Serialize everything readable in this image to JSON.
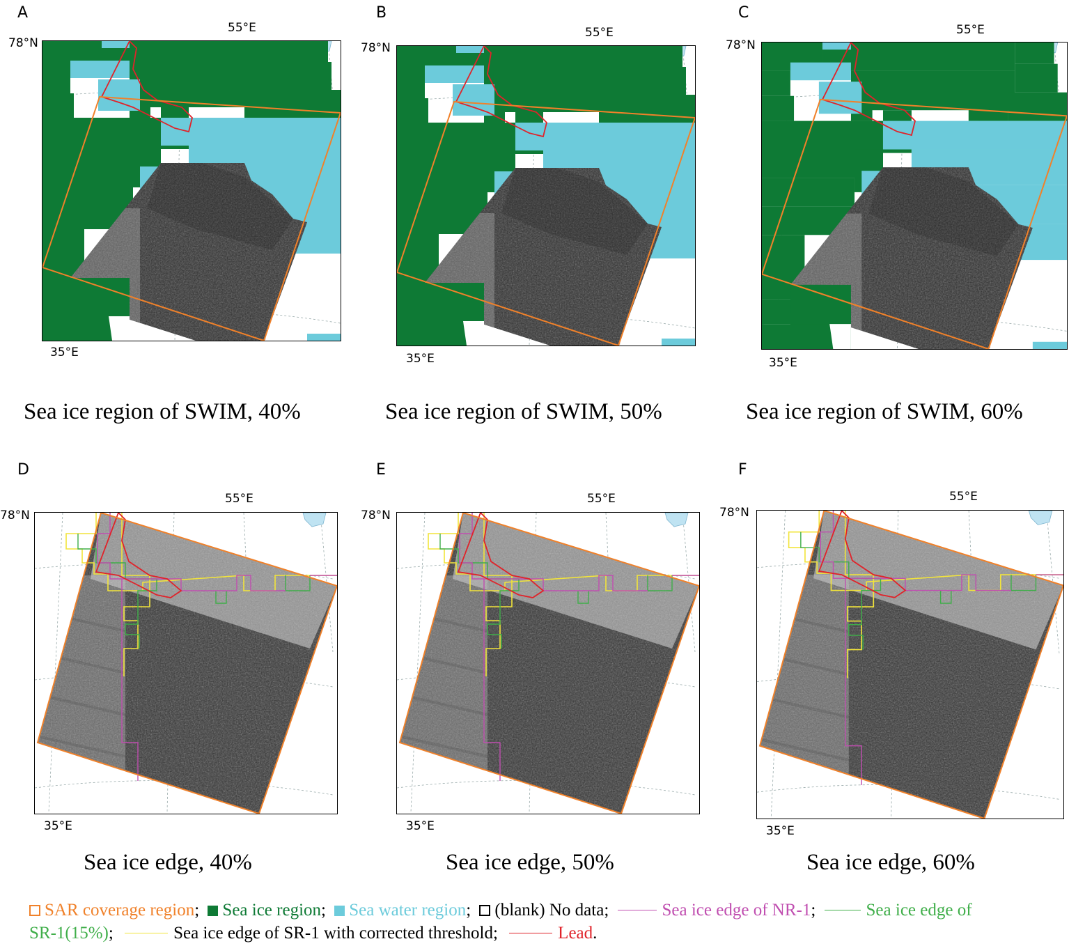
{
  "panels": [
    {
      "letter": "A",
      "lat_label": "78°N",
      "lon_top": "55°E",
      "lon_bottom": "35°E",
      "caption": "Sea ice region of SWIM, 40%"
    },
    {
      "letter": "B",
      "lat_label": "78°N",
      "lon_top": "55°E",
      "lon_bottom": "35°E",
      "caption": "Sea ice region of SWIM, 50%"
    },
    {
      "letter": "C",
      "lat_label": "78°N",
      "lon_top": "55°E",
      "lon_bottom": "35°E",
      "caption": "Sea ice region of SWIM, 60%"
    },
    {
      "letter": "D",
      "lat_label": "78°N",
      "lon_top": "55°E",
      "lon_bottom": "35°E",
      "caption": "Sea ice edge, 40%"
    },
    {
      "letter": "E",
      "lat_label": "78°N",
      "lon_top": "55°E",
      "lon_bottom": "35°E",
      "caption": "Sea ice edge, 50%"
    },
    {
      "letter": "F",
      "lat_label": "78°N",
      "lon_top": "55°E",
      "lon_bottom": "35°E",
      "caption": "Sea ice edge, 60%"
    }
  ],
  "legend": {
    "sar": "SAR coverage region",
    "ice": "Sea ice region",
    "water": "Sea water region",
    "nodata": "(blank) No data",
    "nr1": "Sea ice edge of NR-1",
    "sr1_a": "Sea ice edge of",
    "sr1_b": "SR-1(15%)",
    "sr1c": "Sea ice edge of SR-1 with corrected threshold",
    "lead": "Lead",
    "sep": ";",
    "end": "."
  },
  "colors": {
    "sar": "#f0812a",
    "ice": "#0e7a35",
    "water": "#6ccbdb",
    "nr1": "#c04eb0",
    "sr1": "#3fae49",
    "sr1c": "#f2e43a",
    "lead": "#e0232a",
    "land": "#bfe3f2"
  }
}
